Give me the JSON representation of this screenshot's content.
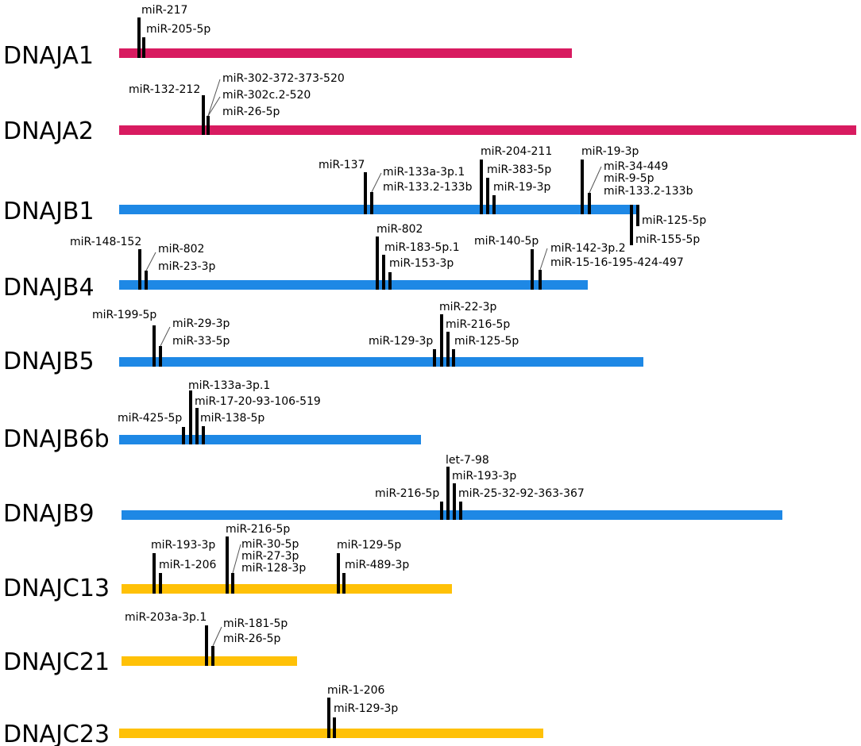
{
  "colors": {
    "DNAJA": "#D81B60",
    "DNAJB": "#1E88E5",
    "DNAJC": "#FFC107",
    "site": "#000000"
  },
  "genes": [
    {
      "name": "DNAJA1",
      "family": "DNAJA",
      "mirnas": [
        "miR-217",
        "miR-205-5p"
      ]
    },
    {
      "name": "DNAJA2",
      "family": "DNAJA",
      "mirnas": [
        "miR-132-212",
        "miR-302-372-373-520",
        "miR-302c.2-520",
        "miR-26-5p"
      ]
    },
    {
      "name": "DNAJB1",
      "family": "DNAJB",
      "mirnas": [
        "miR-137",
        "miR-133a-3p.1",
        "miR-133.2-133b",
        "miR-204-211",
        "miR-383-5p",
        "miR-19-3p",
        "miR-19-3p",
        "miR-34-449",
        "miR-9-5p",
        "miR-133.2-133b",
        "miR-125-5p",
        "miR-155-5p"
      ]
    },
    {
      "name": "DNAJB4",
      "family": "DNAJB",
      "mirnas": [
        "miR-148-152",
        "miR-802",
        "miR-23-3p",
        "miR-802",
        "miR-183-5p.1",
        "miR-153-3p",
        "miR-140-5p",
        "miR-142-3p.2",
        "miR-15-16-195-424-497"
      ]
    },
    {
      "name": "DNAJB5",
      "family": "DNAJB",
      "mirnas": [
        "miR-199-5p",
        "miR-29-3p",
        "miR-33-5p",
        "miR-22-3p",
        "miR-216-5p",
        "miR-129-3p",
        "miR-125-5p"
      ]
    },
    {
      "name": "DNAJB6b",
      "family": "DNAJB",
      "mirnas": [
        "miR-133a-3p.1",
        "miR-17-20-93-106-519",
        "miR-425-5p",
        "miR-138-5p"
      ]
    },
    {
      "name": "DNAJB9",
      "family": "DNAJB",
      "mirnas": [
        "let-7-98",
        "miR-193-3p",
        "miR-216-5p",
        "miR-25-32-92-363-367"
      ]
    },
    {
      "name": "DNAJC13",
      "family": "DNAJC",
      "mirnas": [
        "miR-193-3p",
        "miR-1-206",
        "miR-216-5p",
        "miR-30-5p",
        "miR-27-3p",
        "miR-128-3p",
        "miR-129-5p",
        "miR-489-3p"
      ]
    },
    {
      "name": "DNAJC21",
      "family": "DNAJC",
      "mirnas": [
        "miR-203a-3p.1",
        "miR-181-5p",
        "miR-26-5p"
      ]
    },
    {
      "name": "DNAJC23",
      "family": "DNAJC",
      "mirnas": [
        "miR-1-206",
        "miR-129-3p"
      ]
    }
  ]
}
